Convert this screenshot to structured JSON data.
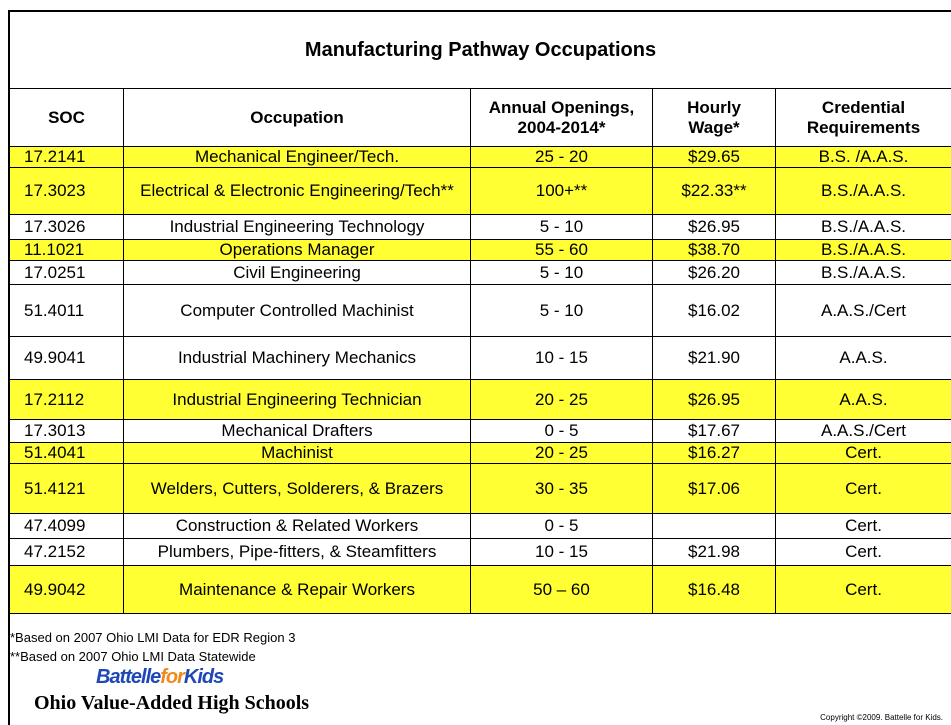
{
  "title": "Manufacturing Pathway Occupations",
  "table": {
    "header": [
      [
        "SOC"
      ],
      [
        "Occupation"
      ],
      [
        "Annual Openings,",
        "2004-2014*"
      ],
      [
        "Hourly",
        "Wage*"
      ],
      [
        "Credential",
        "Requirements"
      ]
    ],
    "rows": [
      {
        "cells": [
          "17.2141",
          "Mechanical Engineer/Tech.",
          "25 - 20",
          "$29.65",
          "B.S. /A.A.S."
        ],
        "highlight": true
      },
      {
        "cells": [
          "17.3023",
          "Electrical & Electronic Engineering/Tech**",
          "100+**",
          "$22.33**",
          "B.S./A.A.S."
        ],
        "highlight": true
      },
      {
        "cells": [
          "17.3026",
          "Industrial Engineering Technology",
          "5 - 10",
          "$26.95",
          "B.S./A.A.S."
        ],
        "highlight": false
      },
      {
        "cells": [
          "11.1021",
          "Operations Manager",
          "55 - 60",
          "$38.70",
          "B.S./A.A.S."
        ],
        "highlight": true
      },
      {
        "cells": [
          "17.0251",
          "Civil Engineering",
          "5 - 10",
          "$26.20",
          "B.S./A.A.S."
        ],
        "highlight": false
      },
      {
        "cells": [
          "51.4011",
          "Computer Controlled Machinist",
          "5 - 10",
          "$16.02",
          "A.A.S./Cert"
        ],
        "highlight": false
      },
      {
        "cells": [
          "49.9041",
          "Industrial Machinery Mechanics",
          "10 - 15",
          "$21.90",
          "A.A.S."
        ],
        "highlight": false
      },
      {
        "cells": [
          "17.2112",
          "Industrial Engineering Technician",
          "20 - 25",
          "$26.95",
          "A.A.S."
        ],
        "highlight": true
      },
      {
        "cells": [
          "17.3013",
          "Mechanical Drafters",
          "0 - 5",
          "$17.67",
          "A.A.S./Cert"
        ],
        "highlight": false
      },
      {
        "cells": [
          "51.4041",
          "Machinist",
          "20 - 25",
          "$16.27",
          "Cert."
        ],
        "highlight": true
      },
      {
        "cells": [
          "51.4121",
          "Welders, Cutters, Solderers, & Brazers",
          "30 - 35",
          "$17.06",
          "Cert."
        ],
        "highlight": true
      },
      {
        "cells": [
          "47.4099",
          "Construction & Related Workers",
          "0 - 5",
          null,
          "Cert."
        ],
        "highlight": false
      },
      {
        "cells": [
          "47.2152",
          "Plumbers, Pipe-fitters, & Steamfitters",
          "10 - 15",
          "$21.98",
          "Cert."
        ],
        "highlight": false
      },
      {
        "cells": [
          "49.9042",
          "Maintenance & Repair Workers",
          "50 – 60",
          "$16.48",
          "Cert."
        ],
        "highlight": true
      }
    ],
    "highlight_color": "#ffff33"
  },
  "footnotes": [
    "*Based on 2007  Ohio LMI Data for EDR Region 3",
    "**Based on 2007  Ohio LMI Data Statewide"
  ],
  "logo": {
    "brand": [
      "Battelle",
      "for",
      "Kids"
    ],
    "subtitle": "Ohio Value-Added High Schools"
  },
  "copyright": "Copyright ©2009. Battelle for Kids."
}
